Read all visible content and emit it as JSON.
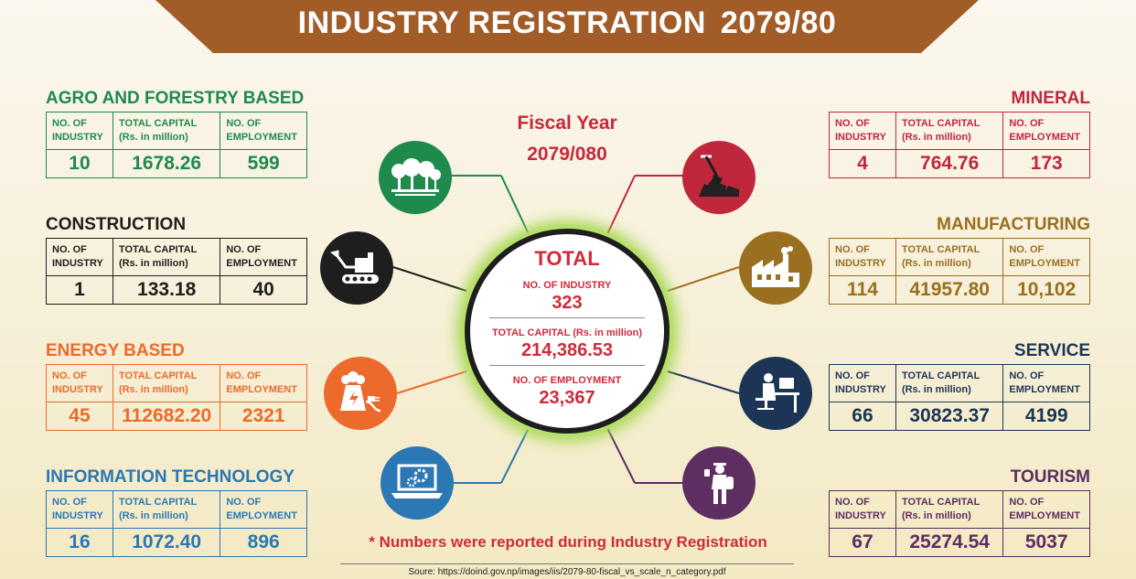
{
  "title": "INDUSTRY REGISTRATION",
  "title_year": "2079/80",
  "fiscal_year": {
    "label": "Fiscal Year",
    "value": "2079/080"
  },
  "headers": {
    "industry_l1": "NO. OF",
    "industry_l2": "INDUSTRY",
    "capital_l1": "TOTAL CAPITAL",
    "capital_l2": "(Rs. in million)",
    "employment_l1": "NO. OF",
    "employment_l2": "EMPLOYMENT"
  },
  "total": {
    "title": "TOTAL",
    "industry_label": "NO. OF INDUSTRY",
    "industry": "323",
    "capital_label": "TOTAL CAPITAL (Rs. in million)",
    "capital": "214,386.53",
    "employment_label": "NO. OF EMPLOYMENT",
    "employment": "23,367"
  },
  "note": "* Numbers were reported during Industry Registration",
  "source": "Soure: https://doind.gov.np/images/iis/2079-80-fiscal_vs_scale_n_category.pdf",
  "colors": {
    "agro": "#1e8a4c",
    "construction": "#1e1e1e",
    "energy": "#ec6a2c",
    "it": "#2b78b4",
    "mineral": "#c0263c",
    "manufacturing": "#9a6f1f",
    "service": "#1c3556",
    "tourism": "#5e2d62"
  },
  "chart_data": {
    "type": "table",
    "columns": [
      "NO. OF INDUSTRY",
      "TOTAL CAPITAL (Rs. in million)",
      "NO. OF EMPLOYMENT"
    ],
    "categories": [
      {
        "name": "AGRO AND FORESTRY BASED",
        "icon": "trees-icon",
        "industry": "10",
        "capital": "1678.26",
        "employment": "599"
      },
      {
        "name": "CONSTRUCTION",
        "icon": "excavator-icon",
        "industry": "1",
        "capital": "133.18",
        "employment": "40"
      },
      {
        "name": "ENERGY BASED",
        "icon": "power-plant-icon",
        "industry": "45",
        "capital": "112682.20",
        "employment": "2321"
      },
      {
        "name": "INFORMATION TECHNOLOGY",
        "icon": "laptop-gears-icon",
        "industry": "16",
        "capital": "1072.40",
        "employment": "896"
      },
      {
        "name": "MINERAL",
        "icon": "coal-shovel-icon",
        "industry": "4",
        "capital": "764.76",
        "employment": "173"
      },
      {
        "name": "MANUFACTURING",
        "icon": "factory-icon",
        "industry": "114",
        "capital": "41957.80",
        "employment": "10,102"
      },
      {
        "name": "SERVICE",
        "icon": "office-worker-icon",
        "industry": "66",
        "capital": "30823.37",
        "employment": "4199"
      },
      {
        "name": "TOURISM",
        "icon": "traveler-icon",
        "industry": "67",
        "capital": "25274.54",
        "employment": "5037"
      }
    ]
  }
}
